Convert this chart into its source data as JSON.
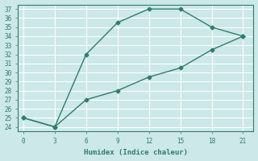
{
  "line1_x": [
    0,
    3,
    6,
    9,
    12,
    15,
    18,
    21
  ],
  "line1_y": [
    25,
    24,
    32,
    35.5,
    37,
    37,
    35,
    34
  ],
  "line2_x": [
    0,
    3,
    6,
    9,
    12,
    15,
    18,
    21
  ],
  "line2_y": [
    25,
    24,
    27,
    28,
    29.5,
    30.5,
    32.5,
    34
  ],
  "color": "#2e7d6e",
  "xlabel": "Humidex (Indice chaleur)",
  "xlim": [
    -0.5,
    22
  ],
  "ylim": [
    23.5,
    37.5
  ],
  "xticks": [
    0,
    3,
    6,
    9,
    12,
    15,
    18,
    21
  ],
  "yticks": [
    24,
    25,
    26,
    27,
    28,
    29,
    30,
    31,
    32,
    33,
    34,
    35,
    36,
    37
  ],
  "bg_color": "#cce8e8",
  "grid_color": "#ffffff",
  "axes_color": "#2e7d6e",
  "tick_font_size": 5.5,
  "xlabel_font_size": 6.5
}
